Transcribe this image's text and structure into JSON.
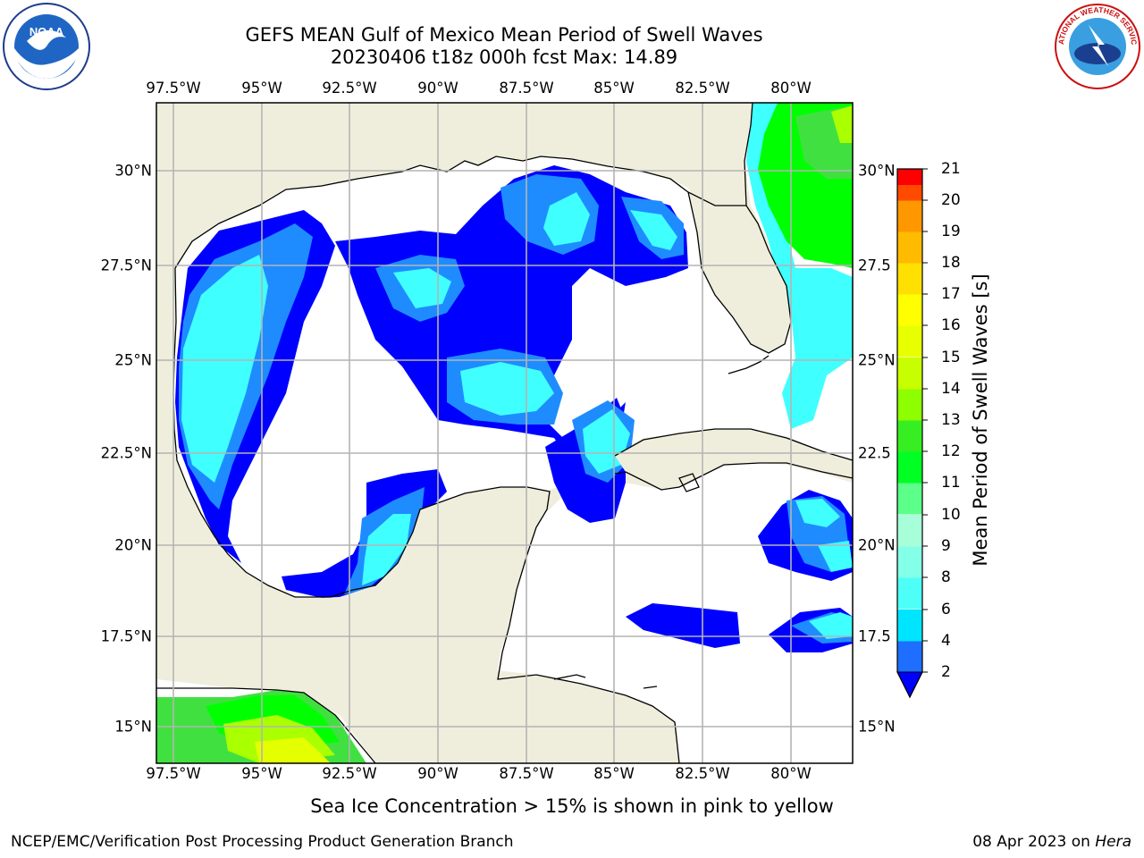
{
  "title": {
    "line1": "GEFS MEAN Gulf of Mexico Mean Period of Swell Waves",
    "line2": "20230406 t18z 000h fcst   Max: 14.89"
  },
  "map": {
    "lon_labels": [
      "97.5°W",
      "95°W",
      "92.5°W",
      "90°W",
      "87.5°W",
      "85°W",
      "82.5°W",
      "80°W"
    ],
    "lat_labels_left": [
      "30°N",
      "27.5°N",
      "25°N",
      "22.5°N",
      "20°N",
      "17.5°N",
      "15°N"
    ],
    "lat_labels_right": [
      "30°N",
      "27.5",
      "25°N",
      "22.5",
      "20°N",
      "17.5",
      "15°N"
    ],
    "colors": {
      "land": "#efeedd",
      "ocean": "#ffffff",
      "grid": "#b4b4b4",
      "coast": "#000000"
    },
    "field": {
      "levels": [
        2,
        4,
        6,
        8,
        9,
        10,
        11,
        12
      ],
      "colors": [
        "#0000ff",
        "#1e8cff",
        "#00ffff",
        "#40ffe6",
        "#8cffd9",
        "#4dff7a",
        "#00ff00",
        "#41e041",
        "#aaff00",
        "#e4ff00"
      ]
    }
  },
  "colorbar": {
    "label": "Mean Period of Swell Waves [s]",
    "ticks": [
      "21",
      "20",
      "19",
      "18",
      "17",
      "16",
      "15",
      "14",
      "13",
      "12",
      "11",
      "10",
      "9",
      "8",
      "6",
      "4",
      "2"
    ],
    "colors_bottom_to_top": [
      "#1e6fff",
      "#00e5ff",
      "#4dfff6",
      "#84ffe8",
      "#a6ffd9",
      "#5cff8a",
      "#00ff22",
      "#37ee22",
      "#8dff00",
      "#c8ff00",
      "#e8ff00",
      "#ffff00",
      "#ffe000",
      "#ffbb00",
      "#ff9700",
      "#ff7200",
      "#ff4a00",
      "#ff2400",
      "#ff0000"
    ],
    "extend_color": "#0000ff"
  },
  "notes": {
    "ice": "Sea Ice Concentration > 15% is shown in pink to yellow"
  },
  "footer": {
    "left": "NCEP/EMC/Verification Post Processing Product Generation Branch",
    "date": "08 Apr 2023 on ",
    "host": "Hera"
  },
  "logos": {
    "noaa_text": "NOAA",
    "nws_text": "NATIONAL WEATHER SERVICE"
  }
}
